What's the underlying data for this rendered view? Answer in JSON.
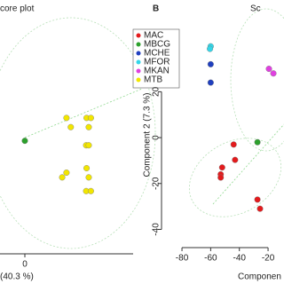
{
  "chart_data": [
    {
      "type": "scatter",
      "title": "core plot",
      "x_label": "(40.3 %)",
      "xlim": [
        -17.3,
        78.5
      ],
      "xticks": [
        0
      ],
      "ylim": [
        -46.4,
        48.4
      ],
      "legend": "top-right",
      "series": [
        {
          "name": "MAC",
          "color": "#e31a1c",
          "x": [],
          "y": []
        },
        {
          "name": "MBCG",
          "color": "#2ca02c",
          "x": [
            0
          ],
          "y": [
            0
          ]
        },
        {
          "name": "MCHE",
          "color": "#1f3fbf",
          "x": [],
          "y": []
        },
        {
          "name": "MFOR",
          "color": "#33d6e8",
          "x": [],
          "y": []
        },
        {
          "name": "MKAN",
          "color": "#e040e0",
          "x": [],
          "y": []
        },
        {
          "name": "MTB",
          "color": "#f2e600",
          "x": [
            29,
            32,
            43,
            46,
            44.5,
            42.7,
            44.5,
            29,
            26,
            43,
            44.5,
            42.7,
            46
          ],
          "y": [
            9.7,
            5.8,
            9.7,
            9.7,
            5.8,
            -1.9,
            -1.9,
            -13.5,
            -15.5,
            -11.6,
            -15.5,
            -21.3,
            -21.3
          ]
        }
      ]
    },
    {
      "type": "scatter",
      "panel_label": "B",
      "title": "Sc",
      "x_label": "Componen",
      "y_label": "Component 2 (7.3 %)",
      "xlim": [
        -89.3,
        -8.9
      ],
      "xticks": [
        -80,
        -60,
        -40,
        -20
      ],
      "ylim": [
        -46.4,
        48.4
      ],
      "yticks": [
        -40,
        -20,
        0,
        20
      ],
      "series": [
        {
          "color": "#e31a1c",
          "x": [
            -44,
            -52,
            -53,
            -53,
            -43,
            -27.4,
            -25.6
          ],
          "y": [
            -3,
            -13,
            -16,
            -17.4,
            -9.7,
            -27,
            -31
          ]
        },
        {
          "color": "#2ca02c",
          "x": [
            -27.4
          ],
          "y": [
            -2
          ]
        },
        {
          "color": "#1f3fbf",
          "x": [
            -60,
            -60
          ],
          "y": [
            32,
            24
          ]
        },
        {
          "color": "#33d6e8",
          "x": [
            -60,
            -60.5
          ],
          "y": [
            39.8,
            38.7
          ]
        },
        {
          "color": "#e040e0",
          "x": [
            -19.4,
            -16.3
          ],
          "y": [
            30,
            28
          ]
        }
      ]
    }
  ]
}
